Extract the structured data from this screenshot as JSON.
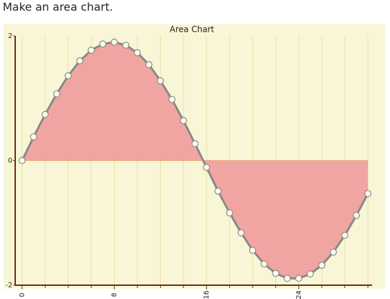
{
  "prompt": "Make an area chart.",
  "chart_data": {
    "type": "area",
    "title": "Area Chart",
    "x": [
      0,
      1,
      2,
      3,
      4,
      5,
      6,
      7,
      8,
      9,
      10,
      11,
      12,
      13,
      14,
      15,
      16,
      17,
      18,
      19,
      20,
      21,
      22,
      23,
      24,
      25,
      26,
      27,
      28,
      29,
      30
    ],
    "series": [
      {
        "color": "#f0a0a0",
        "values": [
          0,
          0.38,
          0.74,
          1.07,
          1.36,
          1.6,
          1.77,
          1.87,
          1.9,
          1.85,
          1.73,
          1.54,
          1.28,
          0.98,
          0.64,
          0.27,
          -0.11,
          -0.49,
          -0.84,
          -1.16,
          -1.44,
          -1.66,
          -1.81,
          -1.89,
          -1.89,
          -1.82,
          -1.68,
          -1.47,
          -1.2,
          -0.88,
          -0.53
        ]
      }
    ],
    "xlim": [
      0,
      30
    ],
    "xticks": [
      0,
      8,
      16,
      24
    ],
    "xminorticks": [
      2,
      4,
      6,
      10,
      12,
      14,
      18,
      20,
      22,
      26,
      28,
      30
    ],
    "ylim": [
      -2,
      2
    ],
    "yticks": [
      -2,
      0,
      2
    ],
    "grid": true
  }
}
